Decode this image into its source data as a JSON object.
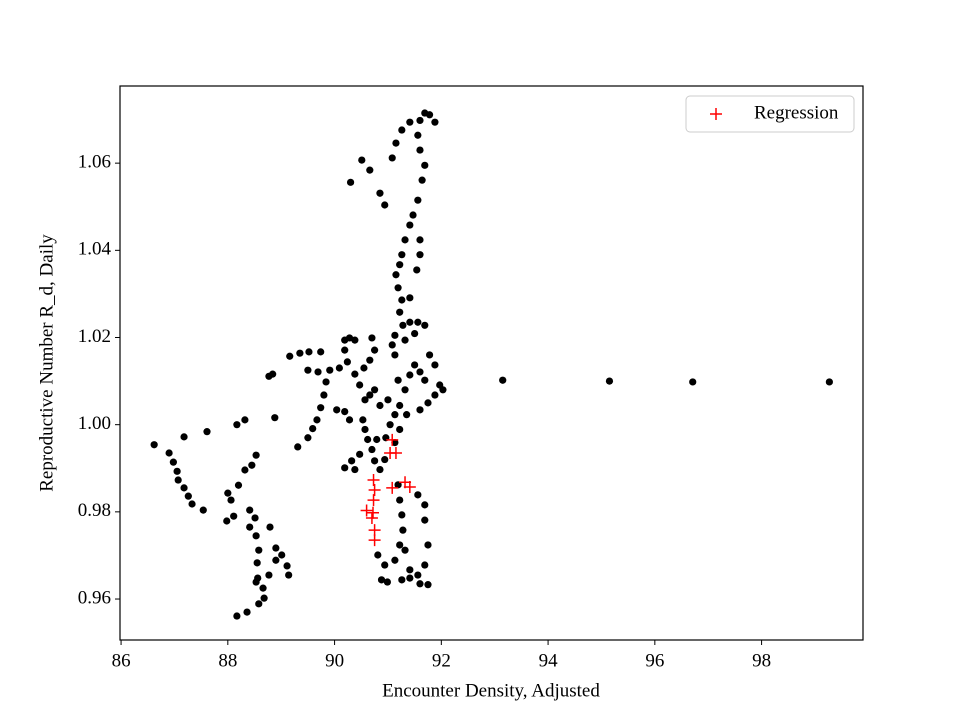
{
  "chart_data": {
    "type": "scatter",
    "x_label": "Encounter Density, Adjusted",
    "y_label": "Reproductive Number R_d, Daily",
    "xlim": [
      85.98,
      99.9
    ],
    "ylim": [
      0.9506,
      1.0777
    ],
    "xticks": [
      86,
      88,
      90,
      92,
      94,
      96,
      98
    ],
    "yticks": [
      0.96,
      0.98,
      {
        "value": 1,
        "label": "1.00"
      },
      1.02,
      1.04,
      1.06
    ],
    "legend": "upper right",
    "series": [
      {
        "color": "#000000",
        "marker": "o",
        "x": [
          86.62,
          86.9,
          86.98,
          87.05,
          87.07,
          87.18,
          87.26,
          87.33,
          87.54,
          87.18,
          87.61,
          88.17,
          88.32,
          88.0,
          88.06,
          87.98,
          88.11,
          88.2,
          88.32,
          88.45,
          88.53,
          88.41,
          88.51,
          88.41,
          88.53,
          88.58,
          88.55,
          88.56,
          88.68,
          88.58,
          88.36,
          88.17,
          88.66,
          88.77,
          88.9,
          88.9,
          89.01,
          89.11,
          89.14,
          88.79,
          88.53,
          88.88,
          88.77,
          88.84,
          89.16,
          89.35,
          89.52,
          89.74,
          89.31,
          89.5,
          89.59,
          89.67,
          89.74,
          89.8,
          89.84,
          89.5,
          89.69,
          89.91,
          90.09,
          90.19,
          90.28,
          90.38,
          90.19,
          90.24,
          90.38,
          90.47,
          90.55,
          90.7,
          90.75,
          90.66,
          90.04,
          90.19,
          90.28,
          90.57,
          90.66,
          90.75,
          90.85,
          91.0,
          90.53,
          90.57,
          90.62,
          90.7,
          90.47,
          90.32,
          90.19,
          90.38,
          90.75,
          90.85,
          90.94,
          90.79,
          90.96,
          91.04,
          91.13,
          91.22,
          91.32,
          91.19,
          91.41,
          91.5,
          91.6,
          91.69,
          91.78,
          91.88,
          91.97,
          92.03,
          91.88,
          91.75,
          91.6,
          91.13,
          91.08,
          91.13,
          91.28,
          91.41,
          91.56,
          91.69,
          91.5,
          91.32,
          91.22,
          91.26,
          91.19,
          91.15,
          91.22,
          91.26,
          91.32,
          91.41,
          91.47,
          91.56,
          91.64,
          91.69,
          91.6,
          91.56,
          91.6,
          91.69,
          91.78,
          91.88,
          91.41,
          91.26,
          91.15,
          91.08,
          90.85,
          90.94,
          90.66,
          90.51,
          90.3,
          91.6,
          91.6,
          91.54,
          91.41,
          91.35,
          91.22,
          91.13,
          91.19,
          91.22,
          91.26,
          91.28,
          91.22,
          91.32,
          91.41,
          91.26,
          91.41,
          91.56,
          91.69,
          91.75,
          91.69,
          91.69,
          91.56,
          91.75,
          91.6,
          91.13,
          90.81,
          90.94,
          90.88,
          90.99,
          93.15,
          95.15,
          96.71,
          99.27
        ],
        "values": [
          0.9954,
          0.9935,
          0.9914,
          0.9893,
          0.9873,
          0.9855,
          0.9836,
          0.9818,
          0.9804,
          0.9972,
          0.9984,
          1.0,
          1.0011,
          0.9843,
          0.9827,
          0.9779,
          0.979,
          0.9861,
          0.9896,
          0.9907,
          0.993,
          0.9804,
          0.9786,
          0.9765,
          0.9745,
          0.9712,
          0.9683,
          0.9648,
          0.9602,
          0.9589,
          0.957,
          0.9561,
          0.9625,
          0.9655,
          0.9689,
          0.9717,
          0.9701,
          0.9676,
          0.9655,
          0.9765,
          0.9639,
          1.0016,
          1.0111,
          1.0116,
          1.0157,
          1.0164,
          1.0167,
          1.0167,
          0.9949,
          0.997,
          0.9991,
          1.0011,
          1.0039,
          1.0068,
          1.0098,
          1.0125,
          1.0121,
          1.0125,
          1.013,
          1.0194,
          1.0199,
          1.0194,
          1.0171,
          1.0144,
          1.0116,
          1.0091,
          1.013,
          1.0199,
          1.0171,
          1.0148,
          1.0034,
          1.003,
          1.0011,
          1.0057,
          1.0068,
          1.008,
          1.0044,
          1.0057,
          1.0011,
          0.9989,
          0.9966,
          0.9943,
          0.9932,
          0.9917,
          0.9901,
          0.9897,
          0.9917,
          0.9897,
          0.992,
          0.9966,
          0.997,
          1.0,
          1.0023,
          1.0044,
          1.008,
          1.0102,
          1.0114,
          1.0137,
          1.0121,
          1.0102,
          1.016,
          1.0137,
          1.0091,
          1.008,
          1.0068,
          1.005,
          1.0034,
          1.016,
          1.0183,
          1.0205,
          1.0228,
          1.0235,
          1.0235,
          1.0228,
          1.0209,
          1.0194,
          1.0258,
          1.0286,
          1.0314,
          1.0344,
          1.0367,
          1.039,
          1.0424,
          1.0458,
          1.0481,
          1.0515,
          1.0561,
          1.0595,
          1.063,
          1.0664,
          1.0698,
          1.0715,
          1.0711,
          1.0694,
          1.0694,
          1.0676,
          1.0646,
          1.0612,
          1.0531,
          1.0504,
          1.0584,
          1.0607,
          1.0556,
          1.0424,
          1.039,
          1.0355,
          1.0291,
          1.0023,
          0.9989,
          0.9959,
          0.9862,
          0.9827,
          0.9793,
          0.9758,
          0.9724,
          0.9712,
          0.9667,
          0.9644,
          0.9648,
          0.9655,
          0.9678,
          0.9724,
          0.9781,
          0.9816,
          0.9839,
          0.9633,
          0.9635,
          0.9689,
          0.9701,
          0.9678,
          0.9644,
          0.9639,
          1.0102,
          1.01,
          1.0098,
          1.0098
        ]
      },
      {
        "name": "Regression",
        "color": "#ff0000",
        "marker": "+",
        "x": [
          90.6,
          90.72,
          90.73,
          90.75,
          90.73,
          90.75,
          90.75,
          90.7,
          91.04,
          91.15,
          91.08,
          91.32,
          91.41,
          91.08
        ],
        "values": [
          0.9803,
          0.9798,
          0.9827,
          0.985,
          0.9873,
          0.9758,
          0.9735,
          0.9786,
          0.9935,
          0.9935,
          0.9855,
          0.9868,
          0.9857,
          0.9965
        ]
      }
    ]
  }
}
